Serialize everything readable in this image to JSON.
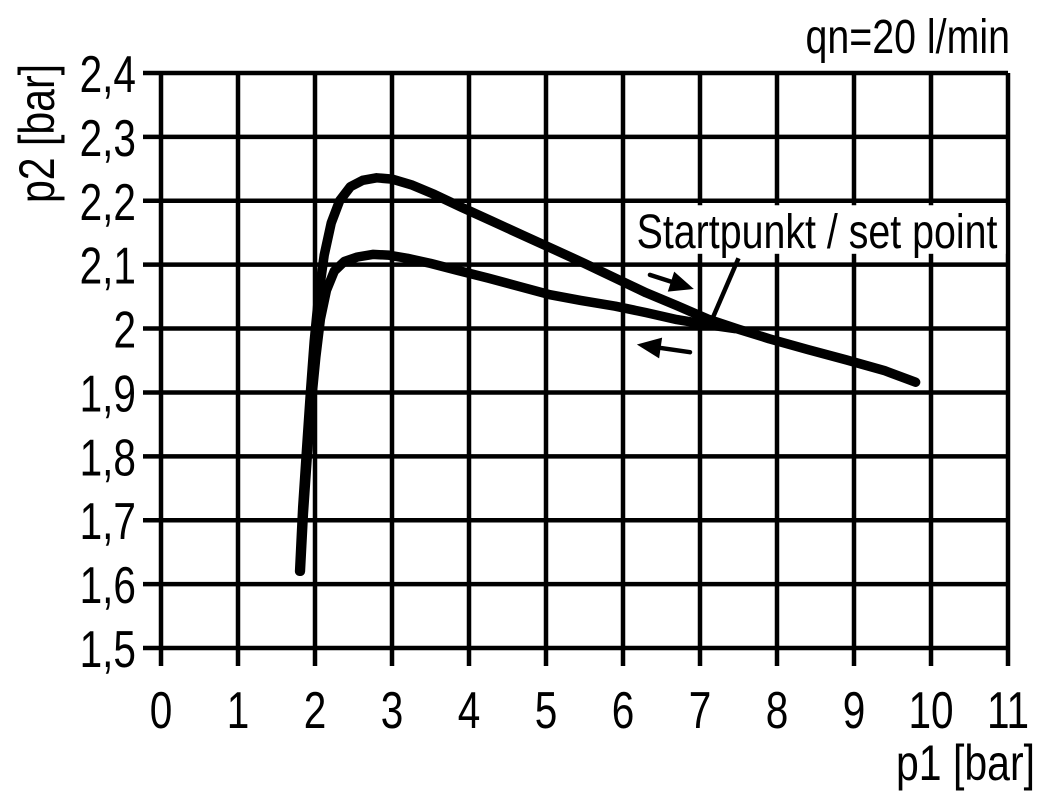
{
  "chart_data": {
    "type": "line",
    "note": "qn=20 l/min",
    "xlabel": "p1 [bar]",
    "ylabel": "p2 [bar]",
    "xlim": [
      0,
      11
    ],
    "ylim": [
      1.5,
      2.4
    ],
    "grid": true,
    "x_ticks": {
      "values": [
        0,
        1,
        2,
        3,
        4,
        5,
        6,
        7,
        8,
        9,
        10,
        11
      ],
      "labels": [
        "0",
        "1",
        "2",
        "3",
        "4",
        "5",
        "6",
        "7",
        "8",
        "9",
        "10",
        "11"
      ]
    },
    "y_ticks": {
      "values": [
        2.4,
        2.3,
        2.2,
        2.1,
        2.0,
        1.9,
        1.8,
        1.7,
        1.6,
        1.5
      ],
      "labels": [
        "2,4",
        "2,3",
        "2,2",
        "2,1",
        "2",
        "1,9",
        "1,8",
        "1,7",
        "1,6",
        "1,5"
      ]
    },
    "series": [
      {
        "name": "curve-upper-hysteresis",
        "points": [
          [
            1.8,
            1.62
          ],
          [
            1.84,
            1.72
          ],
          [
            1.89,
            1.81
          ],
          [
            1.94,
            1.9
          ],
          [
            1.99,
            1.98
          ],
          [
            2.05,
            2.055
          ],
          [
            2.12,
            2.115
          ],
          [
            2.21,
            2.165
          ],
          [
            2.32,
            2.2
          ],
          [
            2.46,
            2.222
          ],
          [
            2.62,
            2.232
          ],
          [
            2.8,
            2.236
          ],
          [
            3.0,
            2.234
          ],
          [
            3.25,
            2.225
          ],
          [
            3.55,
            2.21
          ],
          [
            3.9,
            2.19
          ],
          [
            4.3,
            2.168
          ],
          [
            4.7,
            2.146
          ],
          [
            5.1,
            2.124
          ],
          [
            5.5,
            2.102
          ],
          [
            5.9,
            2.079
          ],
          [
            6.3,
            2.056
          ],
          [
            6.7,
            2.036
          ],
          [
            7.1,
            2.015
          ],
          [
            7.5,
            1.999
          ],
          [
            7.9,
            1.984
          ],
          [
            8.4,
            1.967
          ],
          [
            8.9,
            1.951
          ],
          [
            9.4,
            1.934
          ],
          [
            9.8,
            1.916
          ]
        ]
      },
      {
        "name": "curve-lower-hysteresis",
        "points": [
          [
            1.81,
            1.62
          ],
          [
            1.85,
            1.71
          ],
          [
            1.9,
            1.8
          ],
          [
            1.95,
            1.88
          ],
          [
            2.01,
            1.955
          ],
          [
            2.07,
            2.015
          ],
          [
            2.15,
            2.06
          ],
          [
            2.25,
            2.09
          ],
          [
            2.38,
            2.105
          ],
          [
            2.55,
            2.112
          ],
          [
            2.75,
            2.116
          ],
          [
            2.95,
            2.115
          ],
          [
            3.2,
            2.11
          ],
          [
            3.5,
            2.102
          ],
          [
            3.85,
            2.091
          ],
          [
            4.25,
            2.079
          ],
          [
            4.65,
            2.066
          ],
          [
            5.05,
            2.053
          ],
          [
            5.45,
            2.044
          ],
          [
            5.9,
            2.035
          ],
          [
            6.3,
            2.025
          ],
          [
            6.7,
            2.014
          ],
          [
            7.1,
            2.006
          ],
          [
            7.45,
            2.0
          ]
        ]
      }
    ],
    "annotations": {
      "set_point": {
        "text": "Startpunkt / set point",
        "box": {
          "x1": 6.07,
          "x2": 10.97,
          "y_top": 2.193,
          "y_bottom": 2.117
        },
        "leader": {
          "from": [
            7.5,
            2.11
          ],
          "to": [
            7.12,
            2.004
          ]
        }
      },
      "arrows": [
        {
          "name": "hysteresis-arrow-forward",
          "tail": [
            6.35,
            2.084
          ],
          "tip": [
            6.92,
            2.062
          ]
        },
        {
          "name": "hysteresis-arrow-return",
          "tail": [
            6.87,
            1.963
          ],
          "tip": [
            6.18,
            1.975
          ]
        }
      ]
    },
    "colors": {
      "line": "#000000",
      "grid": "#000000",
      "text": "#000000",
      "background": "#ffffff"
    }
  }
}
